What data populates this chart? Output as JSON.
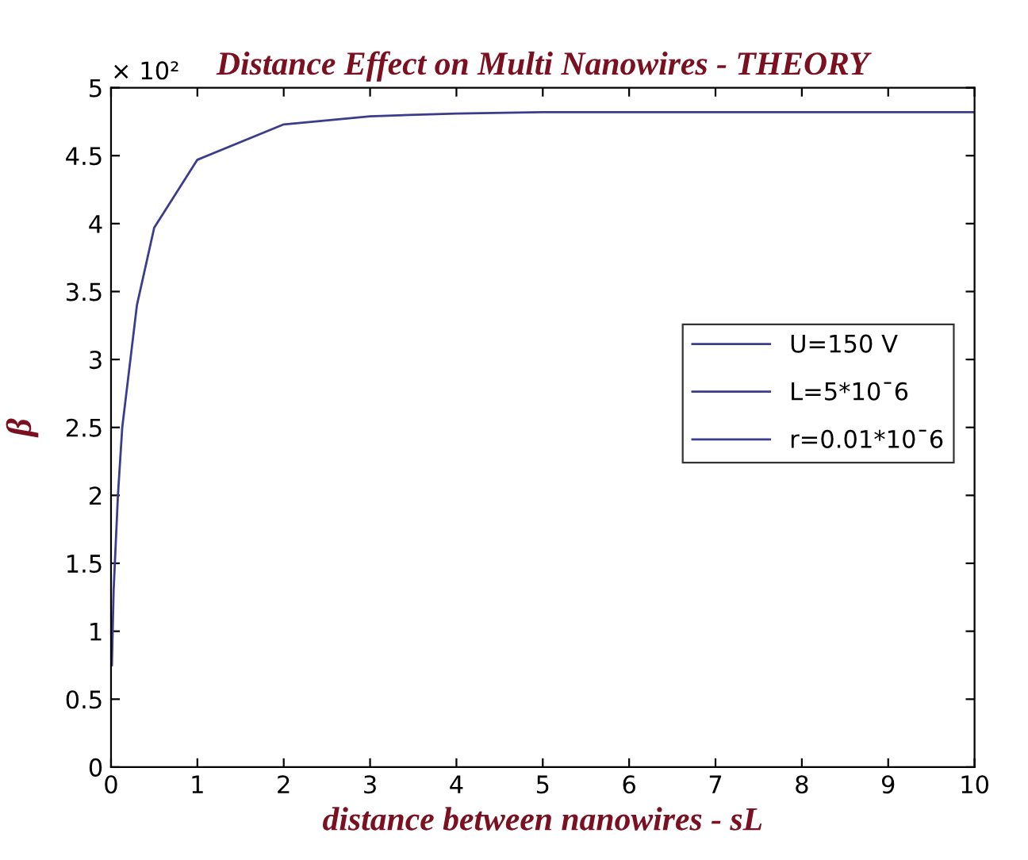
{
  "chart_data": {
    "type": "line",
    "title": "Distance Effect on Multi Nanowires - THEORY",
    "xlabel": "distance between nanowires - sL",
    "ylabel": "β",
    "annotations": [
      "× 10²",
      "L=5*10ˉ6",
      "r=0.01*10ˉ6"
    ],
    "x": [
      0.01,
      0.03,
      0.08,
      0.13,
      0.3,
      0.5,
      1,
      2,
      3,
      4,
      5,
      10
    ],
    "series": [
      {
        "name": "U=150 V",
        "color": "#3c3c8c",
        "values": [
          0.75,
          1.3,
          2.0,
          2.5,
          3.4,
          3.97,
          4.47,
          4.73,
          4.79,
          4.81,
          4.82,
          4.82
        ]
      }
    ],
    "xlim": [
      0,
      10
    ],
    "xticks": [
      0,
      1,
      2,
      3,
      4,
      5,
      6,
      7,
      8,
      9,
      10
    ],
    "ylim": [
      0,
      5
    ],
    "yticks": [
      0,
      0.5,
      1,
      1.5,
      2,
      2.5,
      3,
      3.5,
      4,
      4.5,
      5
    ],
    "grid": false,
    "legend": "right",
    "line_style": "solid",
    "marker": "none"
  }
}
